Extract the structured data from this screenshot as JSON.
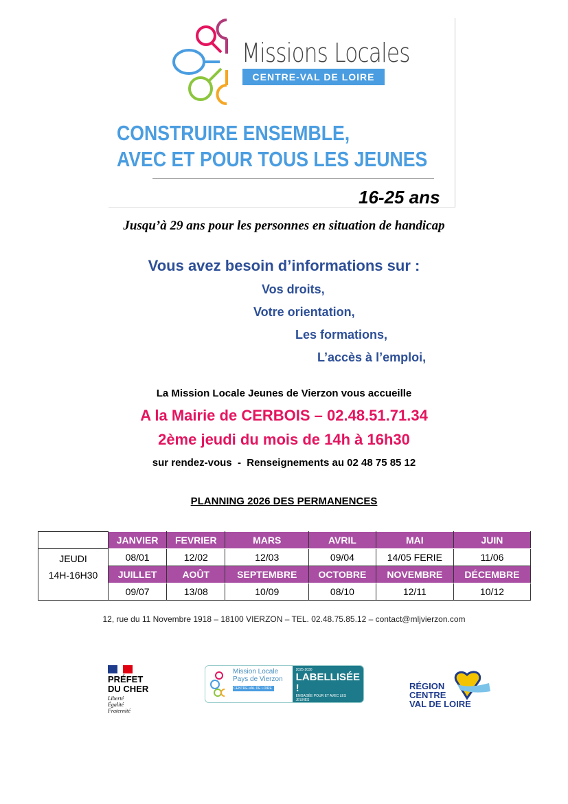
{
  "header": {
    "logo_title": "Missions Locales",
    "logo_subtitle": "CENTRE-VAL DE LOIRE",
    "slogan_line1": "CONSTRUIRE ENSEMBLE,",
    "slogan_line2": "AVEC ET POUR TOUS LES JEUNES",
    "age_range": "16-25 ans",
    "handicap_note": "Jusqu’à 29 ans pour les personnes en situation de handicap"
  },
  "info": {
    "heading": "Vous avez besoin d’informations sur :",
    "items": [
      "Vos droits,",
      "Votre orientation,",
      "Les formations,",
      "L’accès à l’emploi,"
    ]
  },
  "welcome": {
    "intro": "La Mission Locale Jeunes de Vierzon vous accueille",
    "location": "A la Mairie de CERBOIS – 02.48.51.71.34",
    "schedule": "2ème jeudi du mois de 14h à 16h30",
    "appointment": "sur rendez-vous  -  Renseignements au 02 48 75 85 12"
  },
  "planning": {
    "title": "PLANNING 2026 DES PERMANENCES",
    "row_label_day": "JEUDI",
    "row_label_time": "14H-16H30",
    "months_row1": [
      "JANVIER",
      "FEVRIER",
      "MARS",
      "AVRIL",
      "MAI",
      "JUIN"
    ],
    "dates_row1": [
      "08/01",
      "12/02",
      "12/03",
      "09/04",
      "14/05 FERIE",
      "11/06"
    ],
    "months_row2": [
      "JUILLET",
      "AOÛT",
      "SEPTEMBRE",
      "OCTOBRE",
      "NOVEMBRE",
      "DÉCEMBRE"
    ],
    "dates_row2": [
      "09/07",
      "13/08",
      "10/09",
      "08/10",
      "12/11",
      "10/12"
    ]
  },
  "footer": {
    "address": "12, rue du 11 Novembre 1918 – 18100 VIERZON – TEL. 02.48.75.85.12 – contact@mljvierzon.com",
    "prefet_line1": "PRÉFET",
    "prefet_line2": "DU CHER",
    "motto": [
      "Liberté",
      "Égalité",
      "Fraternité"
    ],
    "ml_logo_line1": "Mission Locale",
    "ml_logo_line2": "Pays de Vierzon",
    "ml_logo_line3": "CENTRE-VAL DE LOIRE",
    "label_years": "2025-2030",
    "label_text": "LABELLISÉE !",
    "label_sub": "ENGAGÉE POUR ET AVEC LES JEUNES",
    "region": [
      "RÉGION",
      "CENTRE",
      "VAL DE LOIRE"
    ]
  },
  "colors": {
    "accent_blue": "#2d4f97",
    "accent_pink": "#e4145f",
    "table_header": "#a94ea3",
    "logo_blue": "#4a9de0"
  }
}
